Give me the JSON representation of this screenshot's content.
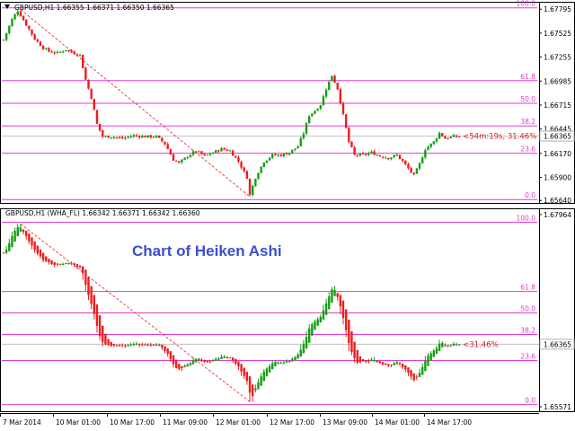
{
  "colors": {
    "bull": "#12a012",
    "bear": "#ee1c1c",
    "fib": "#e03ccf",
    "current": "#c0c0c0",
    "label": "#e02020",
    "annotation": "#3a4fcf"
  },
  "chart_data": [
    {
      "type": "candlestick",
      "header": "GBPUSD,H1  1.66355 1.66371 1.66350 1.66365",
      "close_icon": "triangle-down-icon",
      "y_ticks": [
        "1.67795",
        "1.67525",
        "1.67255",
        "1.66985",
        "1.66715",
        "1.66445",
        "1.66170",
        "1.65900",
        "1.65640"
      ],
      "current_price": "1.66365",
      "countdown_label": "<54m:19s, 31.46%",
      "fib_levels": [
        {
          "label": "100.0",
          "price": 1.6781
        },
        {
          "label": "61.8",
          "price": 1.6699
        },
        {
          "label": "50.0",
          "price": 1.66735
        },
        {
          "label": "38.2",
          "price": 1.6648
        },
        {
          "label": "23.6",
          "price": 1.66172
        },
        {
          "label": "0.0",
          "price": 1.6565
        }
      ],
      "ylim": [
        1.65612,
        1.67868
      ],
      "grid": false
    },
    {
      "type": "candlestick",
      "header": "GBPUSD,H1 (WHA_FL)  1.66342 1.66371 1.66342 1.66360",
      "y_ticks": [
        "1.67964",
        "1.65571"
      ],
      "current_price": "1.66365",
      "countdown_label": "<31.46%",
      "annotation": "Chart of Heiken Ashi",
      "fib_levels": [
        {
          "label": "100.0",
          "price": 1.6781
        },
        {
          "label": "61.8",
          "price": 1.6699
        },
        {
          "label": "50.0",
          "price": 1.66735
        },
        {
          "label": "38.2",
          "price": 1.6648
        },
        {
          "label": "23.6",
          "price": 1.66172
        },
        {
          "label": "0.0",
          "price": 1.6565
        }
      ],
      "ylim": [
        1.65571,
        1.67964
      ],
      "grid": false
    }
  ],
  "x_axis": {
    "labels": [
      "7 Mar 2014",
      "10 Mar 01:00",
      "10 Mar 17:00",
      "11 Mar 09:00",
      "12 Mar 01:00",
      "12 Mar 17:00",
      "13 Mar 09:00",
      "14 Mar 01:00",
      "14 Mar 17:00"
    ]
  },
  "price_path": [
    [
      0,
      1.6745
    ],
    [
      3,
      1.6768
    ],
    [
      5,
      1.6778
    ],
    [
      8,
      1.6762
    ],
    [
      11,
      1.6746
    ],
    [
      14,
      1.6736
    ],
    [
      16,
      1.6732
    ],
    [
      19,
      1.673
    ],
    [
      22,
      1.6734
    ],
    [
      25,
      1.673
    ],
    [
      27,
      1.6728
    ],
    [
      29,
      1.67
    ],
    [
      31,
      1.668
    ],
    [
      33,
      1.665
    ],
    [
      35,
      1.6636
    ],
    [
      38,
      1.6636
    ],
    [
      42,
      1.6634
    ],
    [
      46,
      1.6637
    ],
    [
      50,
      1.6636
    ],
    [
      54,
      1.6636
    ],
    [
      57,
      1.6628
    ],
    [
      60,
      1.661
    ],
    [
      62,
      1.6606
    ],
    [
      65,
      1.6614
    ],
    [
      68,
      1.662
    ],
    [
      71,
      1.6614
    ],
    [
      74,
      1.6618
    ],
    [
      77,
      1.6622
    ],
    [
      80,
      1.662
    ],
    [
      83,
      1.6608
    ],
    [
      86,
      1.659
    ],
    [
      87,
      1.657
    ],
    [
      89,
      1.659
    ],
    [
      92,
      1.6608
    ],
    [
      95,
      1.6615
    ],
    [
      98,
      1.6615
    ],
    [
      101,
      1.6618
    ],
    [
      104,
      1.6625
    ],
    [
      106,
      1.664
    ],
    [
      108,
      1.666
    ],
    [
      110,
      1.6665
    ],
    [
      112,
      1.6672
    ],
    [
      114,
      1.669
    ],
    [
      116,
      1.6705
    ],
    [
      118,
      1.669
    ],
    [
      120,
      1.666
    ],
    [
      122,
      1.663
    ],
    [
      124,
      1.6615
    ],
    [
      127,
      1.6615
    ],
    [
      130,
      1.6618
    ],
    [
      133,
      1.6614
    ],
    [
      136,
      1.6612
    ],
    [
      139,
      1.6615
    ],
    [
      141,
      1.6608
    ],
    [
      143,
      1.66
    ],
    [
      145,
      1.6592
    ],
    [
      147,
      1.6605
    ],
    [
      149,
      1.6622
    ],
    [
      152,
      1.663
    ],
    [
      154,
      1.664
    ],
    [
      156,
      1.6634
    ],
    [
      159,
      1.6636
    ],
    [
      161,
      1.6636
    ]
  ]
}
